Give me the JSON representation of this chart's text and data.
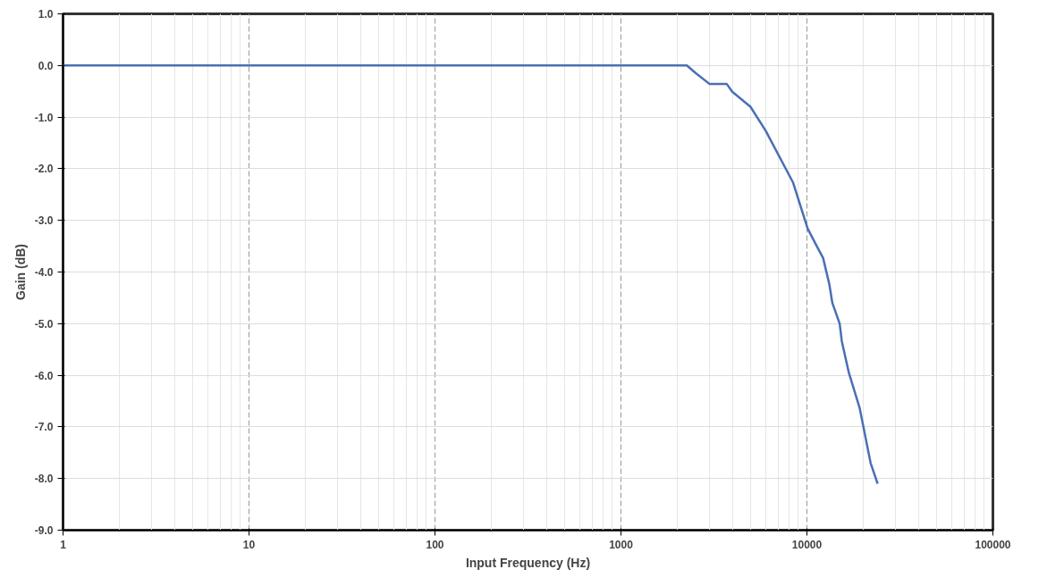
{
  "chart_data": {
    "type": "line",
    "xlabel": "Input Frequency (Hz)",
    "ylabel": "Gain (dB)",
    "log": "x",
    "grid": true,
    "marker": "none",
    "line_style": "solid",
    "xlim": [
      1,
      100000
    ],
    "xticks": [
      1,
      10,
      100,
      1000,
      10000,
      100000
    ],
    "ylim": [
      -9,
      1
    ],
    "yticks": [
      {
        "value": 1,
        "label": "1.0"
      },
      {
        "value": 0,
        "label": "0.0"
      },
      {
        "value": -1,
        "label": "-1.0"
      },
      {
        "value": -2,
        "label": "-2.0"
      },
      {
        "value": -3,
        "label": "-3.0"
      },
      {
        "value": -4,
        "label": "-4.0"
      },
      {
        "value": -5,
        "label": "-5.0"
      },
      {
        "value": -6,
        "label": "-6.0"
      },
      {
        "value": -7,
        "label": "-7.0"
      },
      {
        "value": -8,
        "label": "-8.0"
      },
      {
        "value": -9,
        "label": "-9.0"
      }
    ],
    "series": [
      {
        "color": "#4a6fb5",
        "x": [
          1,
          10,
          100,
          1000,
          2260,
          2530,
          3000,
          3710,
          3970,
          4970,
          6010,
          8430,
          10090,
          11300,
          12220,
          13200,
          13700,
          15000,
          15400,
          16800,
          19200,
          22000,
          24000
        ],
        "values": [
          0,
          0,
          0,
          0,
          0,
          -0.15,
          -0.36,
          -0.36,
          -0.51,
          -0.8,
          -1.27,
          -2.27,
          -3.16,
          -3.5,
          -3.73,
          -4.24,
          -4.6,
          -5.0,
          -5.34,
          -5.95,
          -6.63,
          -7.7,
          -8.1
        ]
      }
    ]
  }
}
